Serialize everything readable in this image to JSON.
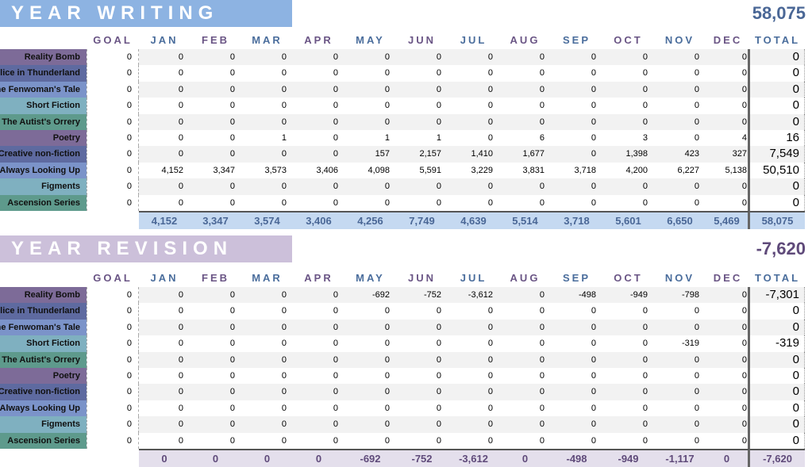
{
  "months_header": [
    "GOAL",
    "JAN",
    "FEB",
    "MAR",
    "APR",
    "MAY",
    "JUN",
    "JUL",
    "AUG",
    "SEP",
    "OCT",
    "NOV",
    "DEC",
    "TOTAL"
  ],
  "colors": {
    "writing_banner": "#8db3e2",
    "writing_text": "#4a6796",
    "writing_total_bg": "#c5d9f1",
    "revision_banner": "#ccc0da",
    "revision_text": "#5f4a7a",
    "revision_total_bg": "#e4dfec",
    "header_purple": "#6a5585",
    "header_blue": "#4a6d9c",
    "label_colors": [
      "#7d6b98",
      "#5e6aa0",
      "#7b93c9",
      "#7fb0c0",
      "#5e9a8c"
    ]
  },
  "writing": {
    "title": "YEAR WRITING TOTAL",
    "grand_total": "58,075",
    "rows": [
      {
        "name": "Reality Bomb",
        "goal": "0",
        "months": [
          "0",
          "0",
          "0",
          "0",
          "0",
          "0",
          "0",
          "0",
          "0",
          "0",
          "0",
          "0"
        ],
        "total": "0"
      },
      {
        "name": "Alice in Thunderland",
        "goal": "0",
        "months": [
          "0",
          "0",
          "0",
          "0",
          "0",
          "0",
          "0",
          "0",
          "0",
          "0",
          "0",
          "0"
        ],
        "total": "0"
      },
      {
        "name": "The Fenwoman's Tale",
        "goal": "0",
        "months": [
          "0",
          "0",
          "0",
          "0",
          "0",
          "0",
          "0",
          "0",
          "0",
          "0",
          "0",
          "0"
        ],
        "total": "0"
      },
      {
        "name": "Short Fiction",
        "goal": "0",
        "months": [
          "0",
          "0",
          "0",
          "0",
          "0",
          "0",
          "0",
          "0",
          "0",
          "0",
          "0",
          "0"
        ],
        "total": "0"
      },
      {
        "name": "The Autist's Orrery",
        "goal": "0",
        "months": [
          "0",
          "0",
          "0",
          "0",
          "0",
          "0",
          "0",
          "0",
          "0",
          "0",
          "0",
          "0"
        ],
        "total": "0"
      },
      {
        "name": "Poetry",
        "goal": "0",
        "months": [
          "0",
          "0",
          "1",
          "0",
          "1",
          "1",
          "0",
          "6",
          "0",
          "3",
          "0",
          "4"
        ],
        "total": "16"
      },
      {
        "name": "Creative non-fiction",
        "goal": "0",
        "months": [
          "0",
          "0",
          "0",
          "0",
          "157",
          "2,157",
          "1,410",
          "1,677",
          "0",
          "1,398",
          "423",
          "327"
        ],
        "total": "7,549"
      },
      {
        "name": "Always Looking Up",
        "goal": "0",
        "months": [
          "4,152",
          "3,347",
          "3,573",
          "3,406",
          "4,098",
          "5,591",
          "3,229",
          "3,831",
          "3,718",
          "4,200",
          "6,227",
          "5,138"
        ],
        "total": "50,510"
      },
      {
        "name": "Figments",
        "goal": "0",
        "months": [
          "0",
          "0",
          "0",
          "0",
          "0",
          "0",
          "0",
          "0",
          "0",
          "0",
          "0",
          "0"
        ],
        "total": "0"
      },
      {
        "name": "Ascension Series",
        "goal": "0",
        "months": [
          "0",
          "0",
          "0",
          "0",
          "0",
          "0",
          "0",
          "0",
          "0",
          "0",
          "0",
          "0"
        ],
        "total": "0"
      }
    ],
    "month_totals": [
      "4,152",
      "3,347",
      "3,574",
      "3,406",
      "4,256",
      "7,749",
      "4,639",
      "5,514",
      "3,718",
      "5,601",
      "6,650",
      "5,469"
    ],
    "total": "58,075"
  },
  "revision": {
    "title": "YEAR REVISION TOTAL",
    "grand_total": "-7,620",
    "rows": [
      {
        "name": "Reality Bomb",
        "goal": "0",
        "months": [
          "0",
          "0",
          "0",
          "0",
          "-692",
          "-752",
          "-3,612",
          "0",
          "-498",
          "-949",
          "-798",
          "0"
        ],
        "total": "-7,301"
      },
      {
        "name": "Alice in Thunderland",
        "goal": "0",
        "months": [
          "0",
          "0",
          "0",
          "0",
          "0",
          "0",
          "0",
          "0",
          "0",
          "0",
          "0",
          "0"
        ],
        "total": "0"
      },
      {
        "name": "The Fenwoman's Tale",
        "goal": "0",
        "months": [
          "0",
          "0",
          "0",
          "0",
          "0",
          "0",
          "0",
          "0",
          "0",
          "0",
          "0",
          "0"
        ],
        "total": "0"
      },
      {
        "name": "Short Fiction",
        "goal": "0",
        "months": [
          "0",
          "0",
          "0",
          "0",
          "0",
          "0",
          "0",
          "0",
          "0",
          "0",
          "-319",
          "0"
        ],
        "total": "-319"
      },
      {
        "name": "The Autist's Orrery",
        "goal": "0",
        "months": [
          "0",
          "0",
          "0",
          "0",
          "0",
          "0",
          "0",
          "0",
          "0",
          "0",
          "0",
          "0"
        ],
        "total": "0"
      },
      {
        "name": "Poetry",
        "goal": "0",
        "months": [
          "0",
          "0",
          "0",
          "0",
          "0",
          "0",
          "0",
          "0",
          "0",
          "0",
          "0",
          "0"
        ],
        "total": "0"
      },
      {
        "name": "Creative non-fiction",
        "goal": "0",
        "months": [
          "0",
          "0",
          "0",
          "0",
          "0",
          "0",
          "0",
          "0",
          "0",
          "0",
          "0",
          "0"
        ],
        "total": "0"
      },
      {
        "name": "Always Looking Up",
        "goal": "0",
        "months": [
          "0",
          "0",
          "0",
          "0",
          "0",
          "0",
          "0",
          "0",
          "0",
          "0",
          "0",
          "0"
        ],
        "total": "0"
      },
      {
        "name": "Figments",
        "goal": "0",
        "months": [
          "0",
          "0",
          "0",
          "0",
          "0",
          "0",
          "0",
          "0",
          "0",
          "0",
          "0",
          "0"
        ],
        "total": "0"
      },
      {
        "name": "Ascension Series",
        "goal": "0",
        "months": [
          "0",
          "0",
          "0",
          "0",
          "0",
          "0",
          "0",
          "0",
          "0",
          "0",
          "0",
          "0"
        ],
        "total": "0"
      }
    ],
    "month_totals": [
      "0",
      "0",
      "0",
      "0",
      "-692",
      "-752",
      "-3,612",
      "0",
      "-498",
      "-949",
      "-1,117",
      "0"
    ],
    "total": "-7,620"
  }
}
